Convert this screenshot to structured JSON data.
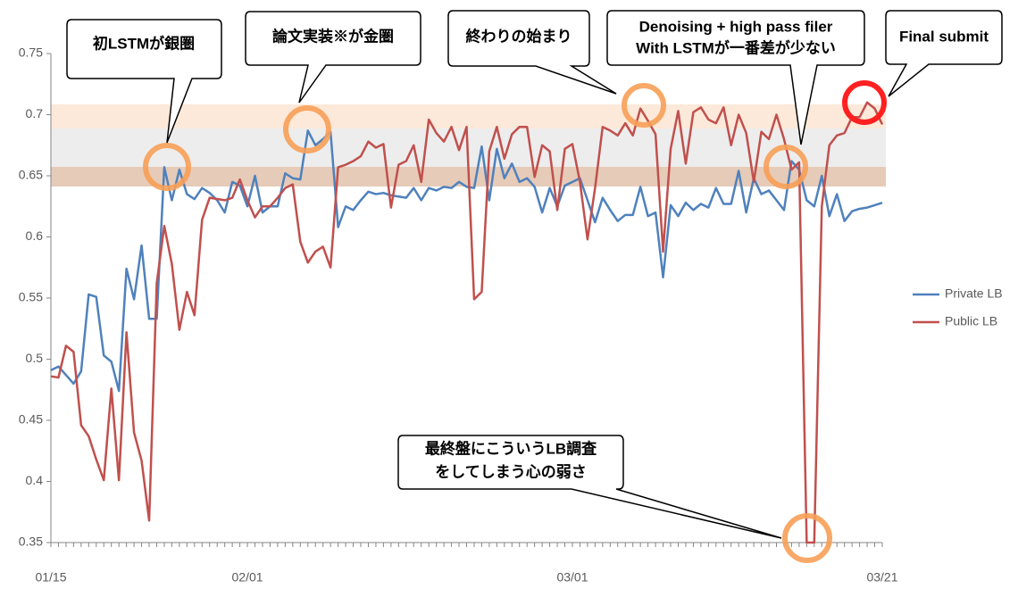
{
  "chart_data": {
    "type": "line",
    "categories": [
      "01/15",
      null,
      null,
      null,
      null,
      null,
      null,
      null,
      null,
      null,
      null,
      null,
      null,
      null,
      null,
      null,
      null,
      null,
      null,
      null,
      null,
      null,
      null,
      null,
      null,
      null,
      "02/01",
      null,
      null,
      null,
      null,
      null,
      null,
      null,
      null,
      null,
      null,
      null,
      null,
      null,
      null,
      null,
      null,
      null,
      null,
      null,
      null,
      null,
      null,
      null,
      null,
      null,
      null,
      null,
      null,
      null,
      null,
      null,
      null,
      null,
      null,
      null,
      null,
      null,
      null,
      null,
      null,
      null,
      null,
      "03/01",
      null,
      null,
      null,
      null,
      null,
      null,
      null,
      null,
      null,
      null,
      null,
      null,
      null,
      null,
      null,
      null,
      null,
      null,
      null,
      null,
      null,
      null,
      null,
      null,
      null,
      null,
      null,
      null,
      null,
      null,
      null,
      null,
      null,
      null,
      null,
      null,
      null,
      null,
      null,
      null,
      "03/21"
    ],
    "series": [
      {
        "name": "Private LB",
        "color": "#4f81bd",
        "values": [
          0.491,
          0.494,
          0.487,
          0.48,
          0.49,
          0.553,
          0.551,
          0.503,
          0.498,
          0.474,
          0.574,
          0.549,
          0.593,
          0.533,
          0.533,
          0.657,
          0.63,
          0.655,
          0.635,
          0.631,
          0.64,
          0.636,
          0.63,
          0.62,
          0.645,
          0.642,
          0.625,
          0.65,
          0.62,
          0.625,
          0.625,
          0.652,
          0.648,
          0.647,
          0.687,
          0.675,
          0.68,
          0.686,
          0.608,
          0.625,
          0.622,
          0.63,
          0.637,
          0.635,
          0.636,
          0.634,
          0.633,
          0.632,
          0.64,
          0.63,
          0.64,
          0.638,
          0.641,
          0.64,
          0.645,
          0.641,
          0.64,
          0.674,
          0.63,
          0.672,
          0.648,
          0.66,
          0.645,
          0.648,
          0.641,
          0.62,
          0.64,
          0.625,
          0.642,
          0.645,
          0.648,
          0.63,
          0.612,
          0.632,
          0.622,
          0.613,
          0.618,
          0.618,
          0.641,
          0.617,
          0.62,
          0.567,
          0.626,
          0.617,
          0.628,
          0.622,
          0.627,
          0.624,
          0.64,
          0.627,
          0.627,
          0.654,
          0.62,
          0.648,
          0.635,
          0.638,
          0.63,
          0.622,
          0.662,
          0.655,
          0.63,
          0.625,
          0.65,
          0.617,
          0.635,
          0.613,
          0.621,
          0.623,
          0.624,
          0.626,
          0.628
        ]
      },
      {
        "name": "Public LB",
        "color": "#c0504d",
        "values": [
          0.486,
          0.485,
          0.511,
          0.506,
          0.446,
          0.437,
          0.418,
          0.401,
          0.476,
          0.401,
          0.522,
          0.44,
          0.417,
          0.368,
          0.562,
          0.609,
          0.578,
          0.524,
          0.555,
          0.536,
          0.614,
          0.632,
          0.631,
          0.63,
          0.632,
          0.647,
          0.63,
          0.616,
          0.625,
          0.625,
          0.632,
          0.64,
          0.643,
          0.596,
          0.579,
          0.588,
          0.592,
          0.575,
          0.657,
          0.659,
          0.662,
          0.666,
          0.678,
          0.673,
          0.676,
          0.624,
          0.659,
          0.662,
          0.675,
          0.645,
          0.696,
          0.685,
          0.678,
          0.69,
          0.671,
          0.69,
          0.549,
          0.555,
          0.67,
          0.69,
          0.664,
          0.684,
          0.69,
          0.69,
          0.649,
          0.675,
          0.67,
          0.622,
          0.672,
          0.676,
          0.645,
          0.598,
          0.64,
          0.69,
          0.687,
          0.683,
          0.693,
          0.683,
          0.705,
          0.695,
          0.684,
          0.588,
          0.672,
          0.703,
          0.66,
          0.702,
          0.706,
          0.696,
          0.693,
          0.706,
          0.675,
          0.7,
          0.685,
          0.645,
          0.686,
          0.68,
          0.7,
          0.68,
          0.655,
          0.661,
          0.35,
          0.35,
          0.625,
          0.675,
          0.683,
          0.685,
          0.698,
          0.698,
          0.71,
          0.705,
          0.692
        ]
      }
    ],
    "ylim": [
      0.35,
      0.75
    ],
    "yticks": [
      0.35,
      0.4,
      0.45,
      0.5,
      0.55,
      0.6,
      0.65,
      0.7,
      0.75
    ],
    "legend": "right",
    "annotations": [
      {
        "lines": [
          "初LSTMが銀圏"
        ]
      },
      {
        "lines": [
          "論文実装※が金圏"
        ]
      },
      {
        "lines": [
          "終わりの始まり"
        ]
      },
      {
        "lines": [
          "Denoising + high pass filer",
          "With LSTMが一番差が少ない"
        ]
      },
      {
        "lines": [
          "Final submit"
        ]
      },
      {
        "lines": [
          "最終盤にこういうLB調査",
          "をしてしまう心の弱さ"
        ]
      }
    ]
  }
}
